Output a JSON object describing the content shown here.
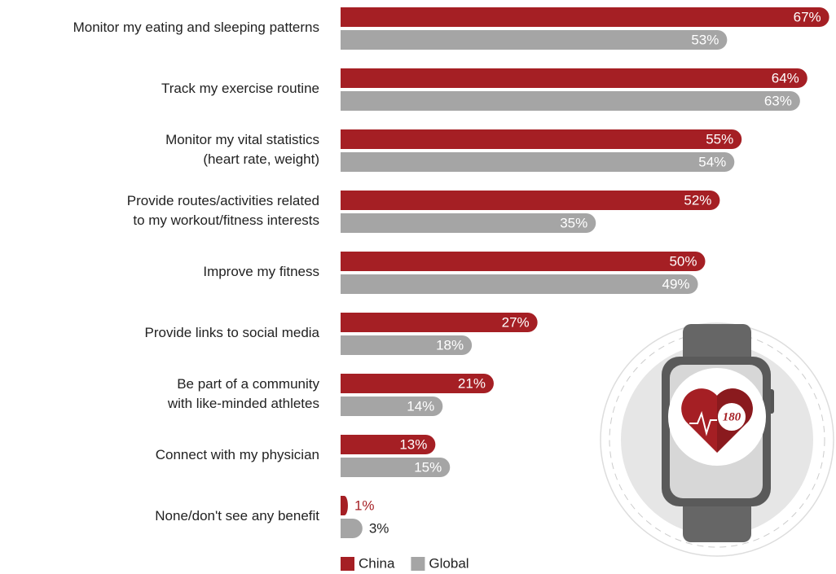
{
  "chart_data": {
    "type": "hbar",
    "categories": [
      "Monitor my eating and sleeping patterns",
      "Track my exercise routine",
      "Monitor my vital statistics\n(heart rate, weight)",
      "Provide routes/activities related\nto my workout/fitness interests",
      "Improve my fitness",
      "Provide links to social media",
      "Be part of a community\nwith like-minded athletes",
      "Connect with my physician",
      "None/don't see any benefit"
    ],
    "series": [
      {
        "name": "China",
        "color": "#a51f24",
        "outside_label_color": "#a51f24",
        "values": [
          67,
          64,
          55,
          52,
          50,
          27,
          21,
          13,
          1
        ],
        "value_labels": [
          "67%",
          "64%",
          "55%",
          "52%",
          "50%",
          "27%",
          "21%",
          "13%",
          "1%"
        ]
      },
      {
        "name": "Global",
        "color": "#a5a5a5",
        "outside_label_color": "#222222",
        "values": [
          53,
          63,
          54,
          35,
          49,
          18,
          14,
          15,
          3
        ],
        "value_labels": [
          "53%",
          "63%",
          "54%",
          "35%",
          "49%",
          "18%",
          "14%",
          "15%",
          "3%"
        ]
      }
    ],
    "legend": "bottom"
  },
  "illustration_text": "180"
}
